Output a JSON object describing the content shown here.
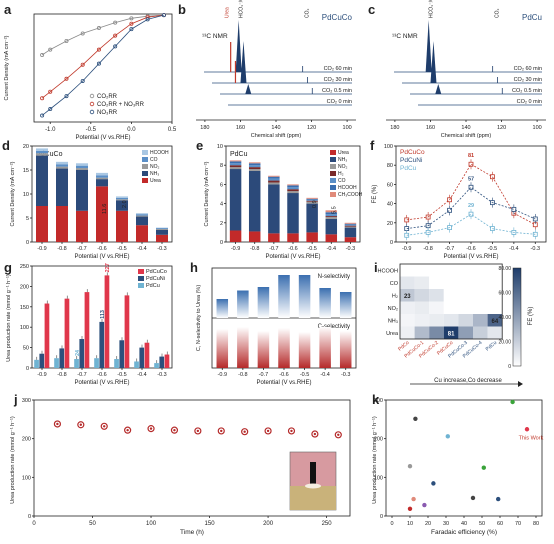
{
  "panels": {
    "a": {
      "letter": "a",
      "ylabel": "Current Density (mA cm⁻²)",
      "xlabel": "Potential (V vs.RHE)",
      "legend": [
        "CO₂RR",
        "CO₂RR + NO₃RR",
        "NO₃RR"
      ]
    },
    "b": {
      "letter": "b",
      "name": "PdCuCo",
      "nmr": "¹³C NMR",
      "xlabel": "Chemical shift (ppm)",
      "peaks": [
        "Urea",
        "HCO₃⁻/CO₃²⁻",
        "CO₂"
      ],
      "traces": [
        "CO₂ 60 min",
        "CO₂ 30 min",
        "CO₂ 0.5 min",
        "CO₂ 0 min"
      ]
    },
    "c": {
      "letter": "c",
      "name": "PdCu",
      "nmr": "¹³C NMR",
      "xlabel": "Chemical shift (ppm)",
      "peaks": [
        "HCO₃⁻/CO₃²⁻",
        "CO₂"
      ],
      "traces": [
        "CO₂ 60 min",
        "CO₂ 30 min",
        "CO₂ 0.5 min",
        "CO₂ 0 min"
      ]
    },
    "d": {
      "letter": "d",
      "name": "PdCuCo",
      "ylabel": "Current Density (mA cm⁻²)",
      "xlabel": "Potential (V vs.RHE)",
      "legend": [
        "HCOOH",
        "CO",
        "NO₂",
        "NH₃",
        "Urea"
      ],
      "annotations": [
        "2.0",
        "11.6"
      ]
    },
    "e": {
      "letter": "e",
      "name": "PdCu",
      "ylabel": "Current Density (mA cm⁻²)",
      "xlabel": "Potential (V vs.RHE)",
      "legend": [
        "Urea",
        "NH₃",
        "NO₂",
        "H₂",
        "CO",
        "HCOOH",
        "CH₃COOH"
      ],
      "annotations": [
        "0.9",
        "5.5"
      ]
    },
    "f": {
      "letter": "f",
      "ylabel": "FE (%)",
      "xlabel": "Potential (V vs.RHE)",
      "legend": [
        "PdCuCo",
        "PdCuNi",
        "PdCu"
      ],
      "annotations": [
        "81",
        "57",
        "29"
      ]
    },
    "g": {
      "letter": "g",
      "ylabel": "Urea production rate (mmol g⁻¹ h⁻¹)",
      "xlabel": "Potential (V vs.RHE)",
      "legend": [
        "PdCuCo",
        "PdCuNi",
        "PdCu"
      ],
      "annotations": [
        "227",
        "113",
        "24"
      ]
    },
    "h": {
      "letter": "h",
      "ylabel": "C, N-selectivity to Urea (%)",
      "xlabel": "Potential (V vs.RHE)",
      "labels": [
        "N-selectivity",
        "C-selectivity"
      ]
    },
    "i": {
      "letter": "i",
      "cbar_label": "FE (%)",
      "cbar_ticks": [
        "80.00",
        "60.00",
        "40.00",
        "20.00",
        "0"
      ],
      "xcats": [
        "PdCo",
        "PdCuCo-1",
        "PdCuCo-2",
        "PdCuCo",
        "PdCuCo-3",
        "PdCuCo-4",
        "PdCu"
      ],
      "ycats": [
        "HCOOH",
        "CO",
        "H₂",
        "NO₂",
        "NH₃",
        "Urea"
      ],
      "arrow_label": "Cu increase,Co decrease",
      "cell_labels": [
        "23",
        "81",
        "64"
      ]
    },
    "j": {
      "letter": "j",
      "ylabel": "Urea production rate (mmol g⁻¹ h⁻¹)",
      "xlabel": "Time (h)"
    },
    "k": {
      "letter": "k",
      "ylabel": "Urea production rate (mmol g⁻¹ h⁻¹)",
      "xlabel": "Faradaic efficiency (%)",
      "this_work": "This Work"
    }
  },
  "chart_data": [
    {
      "type": "line",
      "panel": "a",
      "xlim": [
        -1.2,
        0.5
      ],
      "ylim": [
        -100,
        0
      ],
      "series": [
        {
          "name": "CO₂RR",
          "color": "#8a8a8a",
          "x": [
            0.4,
            0.2,
            0.0,
            -0.2,
            -0.4,
            -0.6,
            -0.8,
            -1.0,
            -1.1
          ],
          "y": [
            -1,
            -2,
            -4,
            -8,
            -13,
            -18,
            -25,
            -33,
            -38
          ]
        },
        {
          "name": "CO₂RR + NO₃RR",
          "color": "#c0392b",
          "x": [
            0.4,
            0.2,
            0.0,
            -0.2,
            -0.4,
            -0.6,
            -0.8,
            -1.0,
            -1.1
          ],
          "y": [
            -1,
            -3,
            -9,
            -20,
            -33,
            -47,
            -60,
            -72,
            -78
          ]
        },
        {
          "name": "NO₃RR",
          "color": "#2c4f7c",
          "x": [
            0.4,
            0.2,
            0.0,
            -0.2,
            -0.4,
            -0.6,
            -0.8,
            -1.0,
            -1.1
          ],
          "y": [
            -1,
            -5,
            -14,
            -30,
            -46,
            -62,
            -76,
            -88,
            -94
          ]
        }
      ]
    },
    {
      "type": "bar",
      "panel": "d",
      "categories": [
        "-0.9",
        "-0.8",
        "-0.7",
        "-0.6",
        "-0.5",
        "-0.4",
        "-0.3"
      ],
      "ylim": [
        0,
        20
      ],
      "series": [
        {
          "name": "Urea",
          "color": "#c22a2a",
          "values": [
            7.5,
            7.5,
            6.5,
            11.6,
            6.5,
            3.5,
            1.5
          ]
        },
        {
          "name": "NH₃",
          "color": "#2c4a7a",
          "values": [
            10.5,
            7.8,
            8.5,
            1.5,
            2.2,
            1.8,
            1.0
          ]
        },
        {
          "name": "NO₂",
          "color": "#9a9a9a",
          "values": [
            0.5,
            0.4,
            0.4,
            0.3,
            0.2,
            0.2,
            0.2
          ]
        },
        {
          "name": "CO",
          "color": "#5b8fc7",
          "values": [
            0.5,
            0.5,
            0.5,
            0.5,
            0.3,
            0.3,
            0.2
          ]
        },
        {
          "name": "HCOOH",
          "color": "#a9c7e3",
          "values": [
            0.5,
            0.5,
            0.5,
            0.5,
            0.3,
            0.2,
            0.1
          ]
        }
      ]
    },
    {
      "type": "bar",
      "panel": "e",
      "categories": [
        "-0.9",
        "-0.8",
        "-0.7",
        "-0.6",
        "-0.5",
        "-0.4",
        "-0.3"
      ],
      "ylim": [
        0,
        10
      ],
      "series": [
        {
          "name": "Urea",
          "color": "#c22a2a",
          "values": [
            1.2,
            1.1,
            0.9,
            0.9,
            1.0,
            0.8,
            0.5
          ]
        },
        {
          "name": "NH₃",
          "color": "#2c4a7a",
          "values": [
            6.4,
            6.3,
            5.1,
            4.2,
            3.0,
            1.6,
            1.0
          ]
        },
        {
          "name": "NO₂",
          "color": "#9a9a9a",
          "values": [
            0.2,
            0.2,
            0.2,
            0.2,
            0.2,
            0.2,
            0.1
          ]
        },
        {
          "name": "H₂",
          "color": "#7a2a2a",
          "values": [
            0.2,
            0.2,
            0.2,
            0.2,
            0.1,
            0.1,
            0.1
          ]
        },
        {
          "name": "CO",
          "color": "#5b8fc7",
          "values": [
            0.2,
            0.2,
            0.2,
            0.2,
            0.1,
            0.2,
            0.1
          ]
        },
        {
          "name": "HCOOH",
          "color": "#3b6fb0",
          "values": [
            0.2,
            0.2,
            0.2,
            0.2,
            0.1,
            0.2,
            0.1
          ]
        },
        {
          "name": "CH₃COOH",
          "color": "#e08a7a",
          "values": [
            0.1,
            0.1,
            0.1,
            0.1,
            0.1,
            0.2,
            0.1
          ]
        }
      ]
    },
    {
      "type": "line",
      "panel": "f",
      "categories": [
        "-0.9",
        "-0.8",
        "-0.7",
        "-0.6",
        "-0.5",
        "-0.4",
        "-0.3"
      ],
      "ylim": [
        0,
        100
      ],
      "series": [
        {
          "name": "PdCuCo",
          "color": "#c0392b",
          "values": [
            23,
            26,
            44,
            81,
            68,
            30,
            18
          ]
        },
        {
          "name": "PdCuNi",
          "color": "#2c4f7c",
          "values": [
            14,
            17,
            33,
            57,
            41,
            34,
            24
          ]
        },
        {
          "name": "PdCu",
          "color": "#6fb3d2",
          "values": [
            7,
            10,
            15,
            29,
            14,
            10,
            8
          ]
        }
      ]
    },
    {
      "type": "bar",
      "panel": "g",
      "categories": [
        "-0.9",
        "-0.8",
        "-0.7",
        "-0.6",
        "-0.5",
        "-0.4",
        "-0.3"
      ],
      "ylim": [
        0,
        250
      ],
      "series": [
        {
          "name": "PdCuCo",
          "color": "#e0374b",
          "values": [
            158,
            170,
            186,
            227,
            178,
            62,
            33
          ]
        },
        {
          "name": "PdCuNi",
          "color": "#2c4f7c",
          "values": [
            35,
            48,
            71,
            113,
            68,
            50,
            28
          ]
        },
        {
          "name": "PdCu",
          "color": "#6fb3d2",
          "values": [
            20,
            24,
            22,
            24,
            22,
            16,
            12
          ]
        }
      ]
    },
    {
      "type": "bar",
      "panel": "h",
      "categories": [
        "-0.9",
        "-0.8",
        "-0.7",
        "-0.6",
        "-0.5",
        "-0.4",
        "-0.3"
      ],
      "ylim": [
        0,
        100
      ],
      "series": [
        {
          "name": "N-selectivity",
          "color": "#5b8fc7",
          "values": [
            38,
            55,
            62,
            86,
            86,
            60,
            52
          ]
        },
        {
          "name": "C-selectivity",
          "color": "#c22a2a",
          "values": [
            78,
            82,
            74,
            80,
            72,
            82,
            74
          ]
        }
      ]
    },
    {
      "type": "heatmap",
      "panel": "i",
      "x": [
        "PdCo",
        "PdCuCo-1",
        "PdCuCo-2",
        "PdCuCo",
        "PdCuCo-3",
        "PdCuCo-4",
        "PdCu"
      ],
      "y": [
        "HCOOH",
        "CO",
        "H₂",
        "NO₂",
        "NH₃",
        "Urea"
      ],
      "values": [
        [
          0,
          0,
          0,
          0,
          0,
          0,
          0
        ],
        [
          10,
          8,
          0,
          0,
          0,
          0,
          0
        ],
        [
          23,
          16,
          12,
          0,
          0,
          0,
          0
        ],
        [
          6,
          8,
          4,
          0,
          0,
          0,
          0
        ],
        [
          4,
          6,
          8,
          10,
          16,
          30,
          64
        ],
        [
          6,
          28,
          48,
          81,
          40,
          20,
          10
        ]
      ],
      "zlim": [
        0,
        80
      ]
    },
    {
      "type": "scatter",
      "panel": "j",
      "xlim": [
        0,
        270
      ],
      "ylim": [
        0,
        300
      ],
      "x": [
        20,
        40,
        60,
        80,
        100,
        120,
        140,
        160,
        180,
        200,
        220,
        240,
        260
      ],
      "y": [
        238,
        236,
        232,
        222,
        226,
        222,
        220,
        220,
        218,
        220,
        220,
        212,
        210
      ]
    },
    {
      "type": "scatter",
      "panel": "k",
      "xlim": [
        0,
        80
      ],
      "ylim": [
        0,
        300
      ],
      "points": [
        {
          "x": 75,
          "y": 227,
          "color": "#e0374b"
        },
        {
          "x": 67,
          "y": 300,
          "color": "#3aa33a"
        },
        {
          "x": 13,
          "y": 255,
          "color": "#444444"
        },
        {
          "x": 31,
          "y": 208,
          "color": "#6fb3d2"
        },
        {
          "x": 51,
          "y": 124,
          "color": "#3aa33a"
        },
        {
          "x": 10,
          "y": 128,
          "color": "#999999"
        },
        {
          "x": 23,
          "y": 82,
          "color": "#2c4f7c"
        },
        {
          "x": 45,
          "y": 43,
          "color": "#444444"
        },
        {
          "x": 59,
          "y": 40,
          "color": "#2c4f7c"
        },
        {
          "x": 12,
          "y": 40,
          "color": "#e08a7a"
        },
        {
          "x": 18,
          "y": 24,
          "color": "#8a5bb0"
        },
        {
          "x": 10,
          "y": 14,
          "color": "#c22a2a"
        }
      ]
    }
  ]
}
